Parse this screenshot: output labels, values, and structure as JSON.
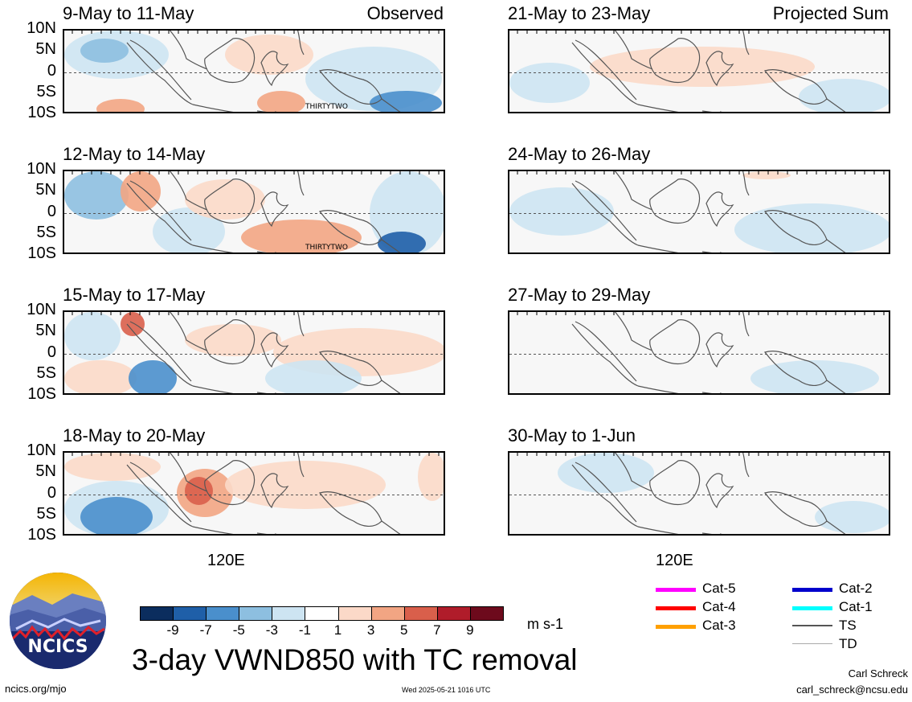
{
  "panels_left": [
    {
      "title": "9-May to 11-May",
      "label": "Observed",
      "storm": "THIRTYTWO"
    },
    {
      "title": "12-May to 14-May",
      "label": "",
      "storm": "THIRTYTWO"
    },
    {
      "title": "15-May to 17-May",
      "label": "",
      "storm": ""
    },
    {
      "title": "18-May to 20-May",
      "label": "",
      "storm": ""
    }
  ],
  "panels_right": [
    {
      "title": "21-May to 23-May",
      "label": "Projected Sum"
    },
    {
      "title": "24-May to 26-May",
      "label": ""
    },
    {
      "title": "27-May to 29-May",
      "label": ""
    },
    {
      "title": "30-May to 1-Jun",
      "label": ""
    }
  ],
  "axis": {
    "y_labels": [
      "10N",
      "5N",
      "0",
      "5S",
      "10S"
    ],
    "x_label": "120E"
  },
  "colorbar": {
    "ticks": [
      "-9",
      "-7",
      "-5",
      "-3",
      "-1",
      "1",
      "3",
      "5",
      "7",
      "9"
    ],
    "colors": [
      "#0b2d5e",
      "#1f5fa8",
      "#4a8fcc",
      "#8dbfe0",
      "#cde4f2",
      "#ffffff",
      "#fbd9c8",
      "#f2a583",
      "#d95f4b",
      "#b01c2a",
      "#6d0a1c"
    ],
    "unit": "m s-1"
  },
  "legend": [
    {
      "label": "Cat-5",
      "color": "#ff00ff"
    },
    {
      "label": "Cat-4",
      "color": "#ff0000"
    },
    {
      "label": "Cat-3",
      "color": "#ffa000"
    },
    {
      "label": "Cat-2",
      "color": "#0000cc"
    },
    {
      "label": "Cat-1",
      "color": "#00ffff"
    },
    {
      "label": "TS",
      "color": "#555555"
    },
    {
      "label": "TD",
      "color": "#aaaaaa"
    }
  ],
  "logo_text": "NCICS",
  "main_title": "3-day VWND850 with TC removal",
  "footer": {
    "url": "ncics.org/mjo",
    "timestamp": "Wed 2025-05-21 1016 UTC",
    "author": "Carl Schreck",
    "email": "carl_schreck@ncsu.edu"
  }
}
